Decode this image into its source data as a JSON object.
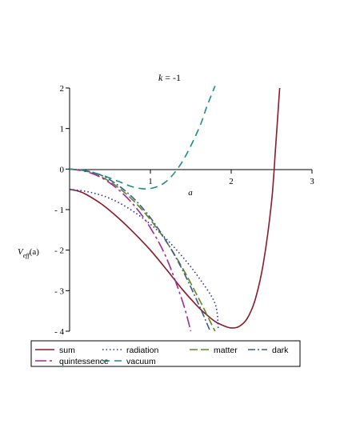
{
  "chart_data": {
    "type": "line",
    "title": {
      "var": "k",
      "rest": " = -1"
    },
    "xlabel": "a",
    "ylabel": {
      "main": "V",
      "sub": "eff",
      "arg": "(a)"
    },
    "xlim": [
      0,
      3
    ],
    "ylim": [
      -4,
      2
    ],
    "xticks": [
      0,
      1,
      2,
      3
    ],
    "yticks": [
      2,
      1,
      0,
      -1,
      -2,
      -3,
      -4
    ],
    "xtick_labels": [
      "0",
      "1",
      "2",
      "3"
    ],
    "ytick_labels": [
      "2",
      "1",
      "0",
      "- 1",
      "- 2",
      "- 3",
      "- 4"
    ],
    "grid": false,
    "legend_position": "bottom",
    "series": [
      {
        "name": "sum",
        "color": "#8b1a2b",
        "dash": "solid",
        "x": [
          0,
          0.1,
          0.2,
          0.4,
          0.6,
          0.8,
          1.0,
          1.2,
          1.4,
          1.6,
          1.7,
          1.8,
          1.9,
          2.0,
          2.1,
          2.2,
          2.3,
          2.4,
          2.5,
          2.55,
          2.6
        ],
        "y": [
          -0.5,
          -0.54,
          -0.62,
          -0.87,
          -1.2,
          -1.58,
          -2.0,
          -2.48,
          -2.98,
          -3.42,
          -3.6,
          -3.76,
          -3.86,
          -3.92,
          -3.88,
          -3.68,
          -3.2,
          -2.3,
          -0.8,
          0.55,
          2.0
        ]
      },
      {
        "name": "radiation",
        "color": "#2b2fa8",
        "dash": "dot",
        "x": [
          0,
          0.2,
          0.4,
          0.6,
          0.8,
          1.0,
          1.2,
          1.4,
          1.6,
          1.8,
          1.84
        ],
        "y": [
          -0.5,
          -0.55,
          -0.65,
          -0.82,
          -1.06,
          -1.36,
          -1.73,
          -2.17,
          -2.68,
          -3.32,
          -3.95
        ]
      },
      {
        "name": "matter",
        "color": "#5c8a1e",
        "dash": "long-dash",
        "x": [
          0,
          0.2,
          0.4,
          0.6,
          0.8,
          1.0,
          1.2,
          1.4,
          1.6,
          1.75,
          1.8
        ],
        "y": [
          0,
          -0.05,
          -0.2,
          -0.45,
          -0.8,
          -1.25,
          -1.8,
          -2.45,
          -3.2,
          -3.8,
          -4.0
        ]
      },
      {
        "name": "dark",
        "color": "#3f5a8a",
        "dash": "dash-dot",
        "x": [
          0,
          0.2,
          0.4,
          0.6,
          0.8,
          1.0,
          1.2,
          1.4,
          1.6,
          1.74
        ],
        "y": [
          0,
          -0.04,
          -0.16,
          -0.4,
          -0.74,
          -1.2,
          -1.79,
          -2.5,
          -3.35,
          -4.0
        ]
      },
      {
        "name": "quintessence",
        "color": "#a3279b",
        "dash": "long-dash-short",
        "x": [
          0,
          0.2,
          0.4,
          0.6,
          0.8,
          1.0,
          1.2,
          1.4,
          1.5
        ],
        "y": [
          0,
          -0.06,
          -0.22,
          -0.5,
          -0.9,
          -1.45,
          -2.2,
          -3.28,
          -4.0
        ]
      },
      {
        "name": "vacuum",
        "color": "#1e8c82",
        "dash": "dash",
        "x": [
          0,
          0.2,
          0.4,
          0.6,
          0.8,
          1.0,
          1.2,
          1.4,
          1.6,
          1.7,
          1.8
        ],
        "y": [
          0,
          -0.04,
          -0.15,
          -0.3,
          -0.45,
          -0.48,
          -0.3,
          0.2,
          1.0,
          1.55,
          2.05
        ]
      }
    ]
  }
}
